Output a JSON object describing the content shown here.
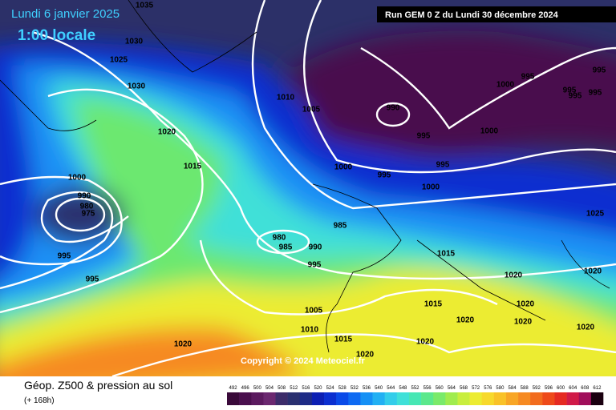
{
  "valid_date": "Lundi 6 janvier 2025",
  "local_time": "1:00 locale",
  "run_info": "Run GEM 0 Z du Lundi 30 décembre 2024",
  "copyright": "Copyright © 2024 Meteociel.fr",
  "product_title": "Géop. Z500 & pression au sol",
  "lead_time": "(+ 168h)",
  "isobar_labels": [
    1035,
    1030,
    1025,
    1030,
    1020,
    1015,
    1000,
    990,
    980,
    975,
    995,
    995,
    1020,
    1010,
    1005,
    990,
    1000,
    995,
    995,
    995,
    995,
    995,
    1000,
    995,
    995,
    1000,
    995,
    1000,
    1025,
    985,
    980,
    985,
    990,
    995,
    1015,
    1020,
    1020,
    1020,
    1020,
    1015,
    1020,
    1020,
    1005,
    1010,
    1015,
    1020,
    1020
  ],
  "colorbar": {
    "labels": [
      492,
      496,
      500,
      504,
      508,
      512,
      516,
      520,
      524,
      528,
      532,
      536,
      540,
      544,
      548,
      552,
      556,
      560,
      564,
      568,
      572,
      576,
      580,
      584,
      588,
      592,
      596,
      600,
      604,
      608,
      612
    ],
    "colors": [
      "#3a0a3a",
      "#4a0f4e",
      "#5b1a5f",
      "#6b2870",
      "#3c2c6a",
      "#2a3070",
      "#1e2b86",
      "#0c1fb3",
      "#0b2fd0",
      "#0a4ae8",
      "#0e6af2",
      "#1590f5",
      "#22b0f3",
      "#33cdea",
      "#3fe0d8",
      "#47e7b4",
      "#5be88c",
      "#7aea6a",
      "#a0ec4e",
      "#c8ee3e",
      "#ecec32",
      "#f7d92c",
      "#f9c228",
      "#f8a626",
      "#f68a22",
      "#f26c1e",
      "#ee4a1a",
      "#e52a22",
      "#d01a48",
      "#a00e5a",
      "#1a0010"
    ]
  }
}
